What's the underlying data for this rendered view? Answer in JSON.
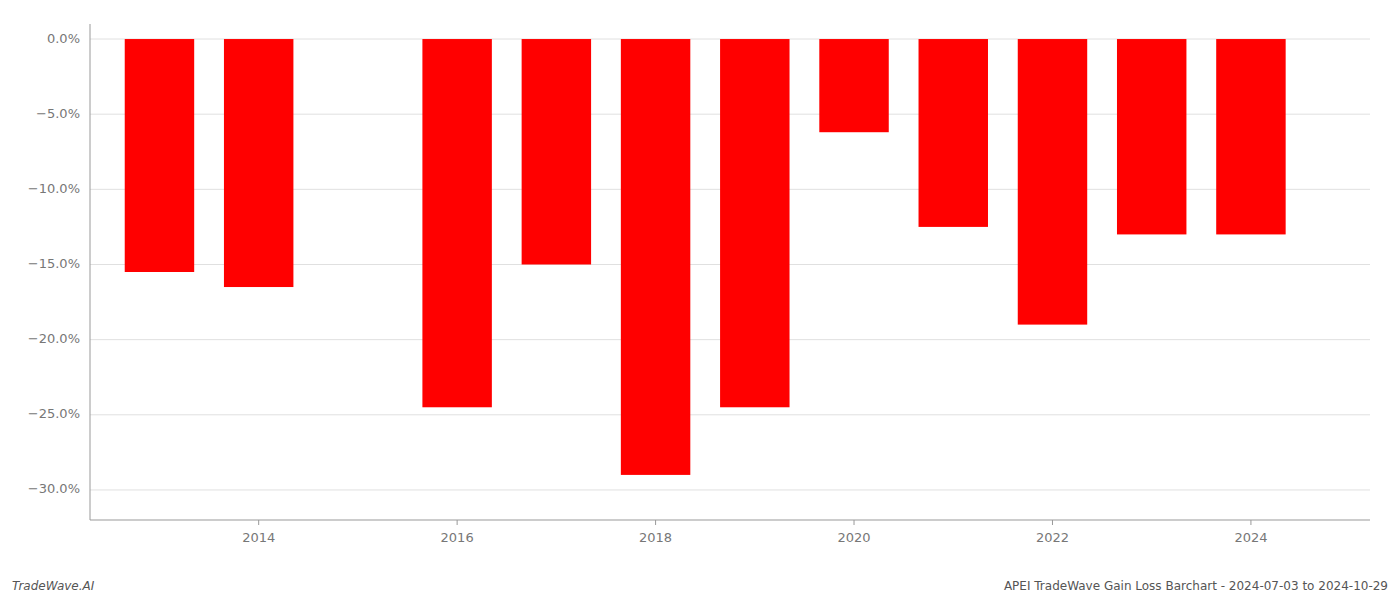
{
  "chart_data": {
    "type": "bar",
    "x": [
      2013,
      2014,
      2015,
      2016,
      2017,
      2018,
      2019,
      2020,
      2021,
      2022,
      2023,
      2024
    ],
    "values": [
      -0.155,
      -0.165,
      -0.0,
      -0.245,
      -0.15,
      -0.29,
      -0.245,
      -0.062,
      -0.125,
      -0.19,
      -0.13,
      -0.13
    ],
    "color": "#ff0000",
    "xlim": [
      2012.3,
      2025.2
    ],
    "xticks": [
      2014,
      2016,
      2018,
      2020,
      2022,
      2024
    ],
    "ylim": [
      -0.32,
      0.01
    ],
    "yticks": [
      {
        "value": 0.0,
        "label": "0.0%"
      },
      {
        "value": -0.05,
        "label": "−5.0%"
      },
      {
        "value": -0.1,
        "label": "−10.0%"
      },
      {
        "value": -0.15,
        "label": "−15.0%"
      },
      {
        "value": -0.2,
        "label": "−20.0%"
      },
      {
        "value": -0.25,
        "label": "−25.0%"
      },
      {
        "value": -0.3,
        "label": "−30.0%"
      }
    ],
    "grid": true,
    "annotations": [
      "TradeWave.AI",
      "APEI TradeWave Gain Loss Barchart - 2024-07-03 to 2024-10-29"
    ]
  }
}
